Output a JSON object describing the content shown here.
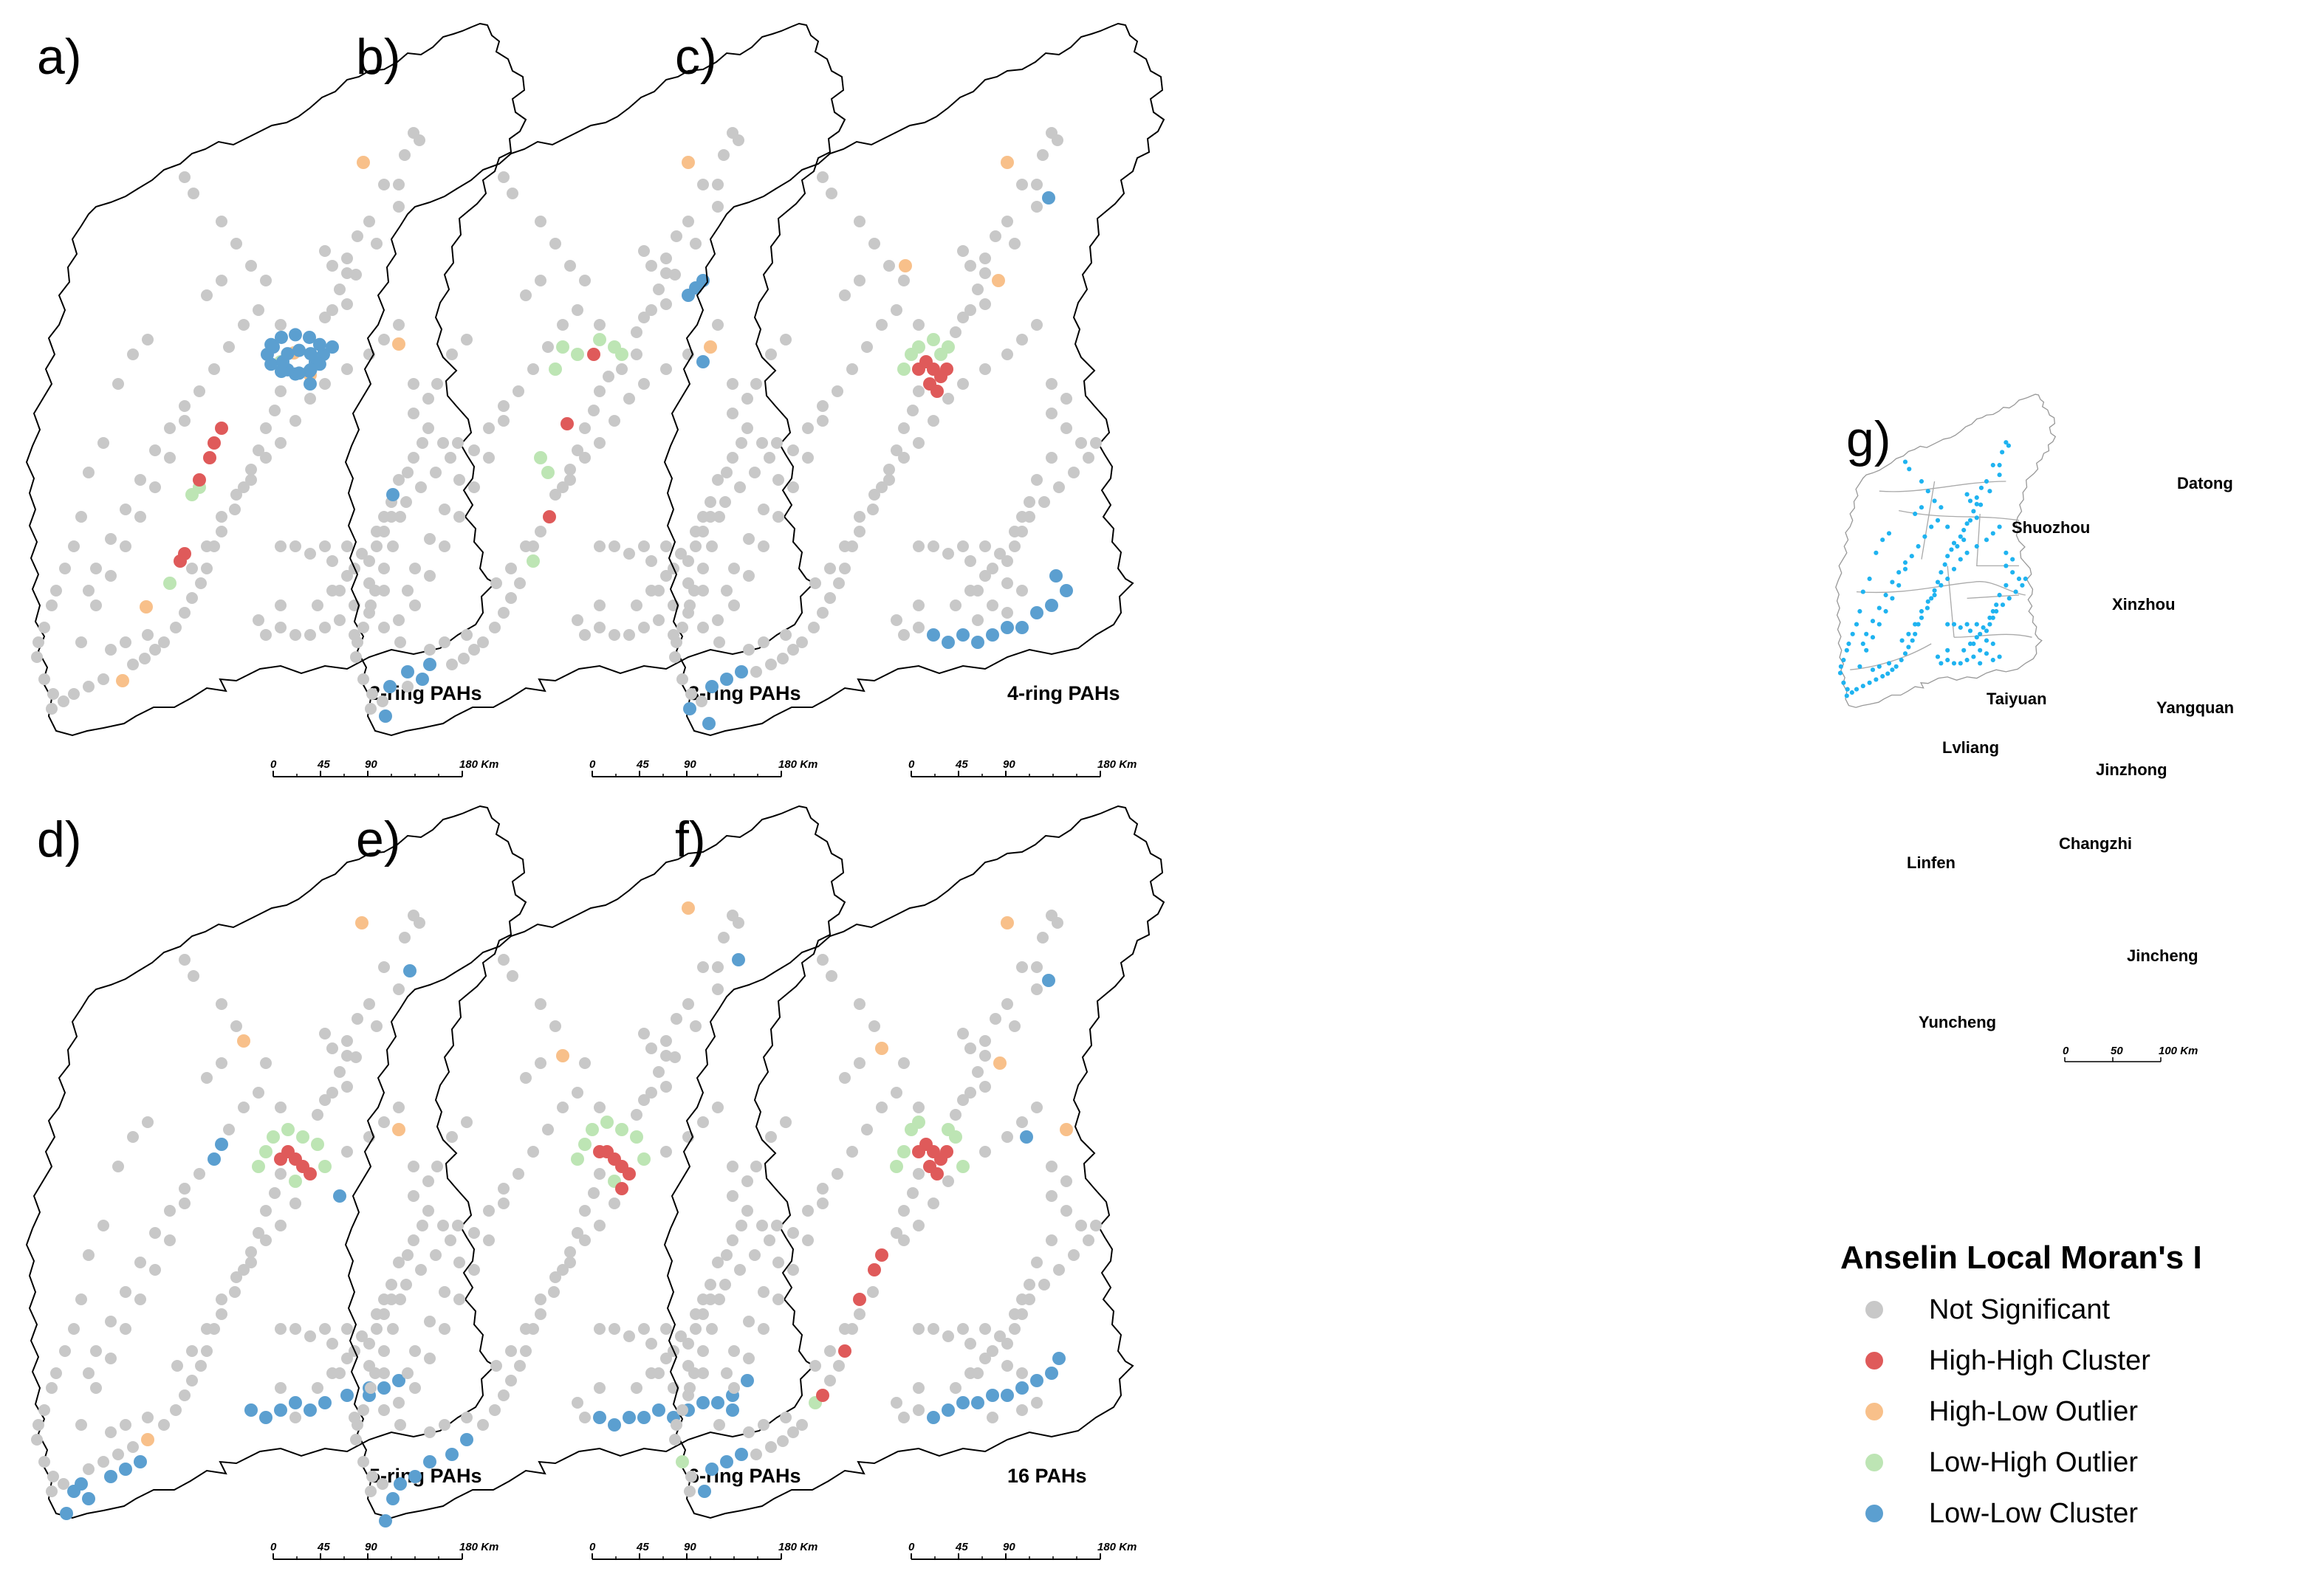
{
  "panels": [
    {
      "letter": "a)",
      "title": "2-ring PAHs"
    },
    {
      "letter": "b)",
      "title": "3-ring PAHs"
    },
    {
      "letter": "c)",
      "title": "4-ring PAHs"
    },
    {
      "letter": "d)",
      "title": "5-ring PAHs"
    },
    {
      "letter": "e)",
      "title": "6-ring PAHs"
    },
    {
      "letter": "f)",
      "title": "16 PAHs"
    }
  ],
  "scalebar": {
    "ticks": [
      "0",
      "45",
      "90",
      "180 Km"
    ]
  },
  "overview": {
    "letter": "g)",
    "cities": [
      "Datong",
      "Shuozhou",
      "Xinzhou",
      "Taiyuan",
      "Yangquan",
      "Lvliang",
      "Jinzhong",
      "Changzhi",
      "Linfen",
      "Jincheng",
      "Yuncheng"
    ],
    "scalebar": {
      "ticks": [
        "0",
        "50",
        "100 Km"
      ]
    },
    "point_color": "#1fb3f0"
  },
  "legend": {
    "title": "Anselin Local Moran's I",
    "items": [
      {
        "label": "Not Significant",
        "color": "#c8c8c8"
      },
      {
        "label": "High-High Cluster",
        "color": "#df5a5a"
      },
      {
        "label": "High-Low Outlier",
        "color": "#f8c08a"
      },
      {
        "label": "Low-High Outlier",
        "color": "#bde5b4"
      },
      {
        "label": "Low-Low Cluster",
        "color": "#5b9fd0"
      }
    ]
  }
}
